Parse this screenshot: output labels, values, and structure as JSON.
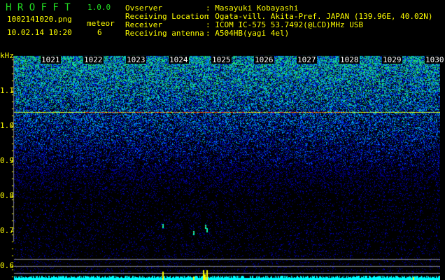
{
  "header": {
    "app_name": "H R O F F T",
    "version": "1.0.0",
    "filename": "1002141020.png",
    "datetime": "10.02.14 10:20",
    "meteor_label": "meteor",
    "meteor_count": "6"
  },
  "info": [
    {
      "label": "Ovserver",
      "value": ": Masayuki Kobayashi"
    },
    {
      "label": "Receiving Location",
      "value": ": Ogata-vill. Akita-Pref. JAPAN (139.96E, 40.02N)"
    },
    {
      "label": "Receiver",
      "value": ": ICOM IC-575 53.7492(@LCD)MHz USB"
    },
    {
      "label": "Receiving antenna",
      "value": ": A504HB(yagi 4el)"
    }
  ],
  "chart_data": {
    "type": "heatmap",
    "ylabel": "kHz",
    "ylim": [
      0.56,
      1.2
    ],
    "y_ticks": [
      "1.1",
      "1.0",
      "0.9",
      "0.8",
      "0.7",
      "0.6"
    ],
    "x_ticks": [
      "1021",
      "1022",
      "1023",
      "1024",
      "1025",
      "1026",
      "1027",
      "1028",
      "1029",
      "1030"
    ],
    "carrier_khz": 1.04,
    "colors": {
      "text": "#ffff00",
      "title": "#22dd22",
      "noise_low": "#0000c0",
      "noise_high": "#00ffff",
      "meteor": "#ffff00"
    }
  }
}
